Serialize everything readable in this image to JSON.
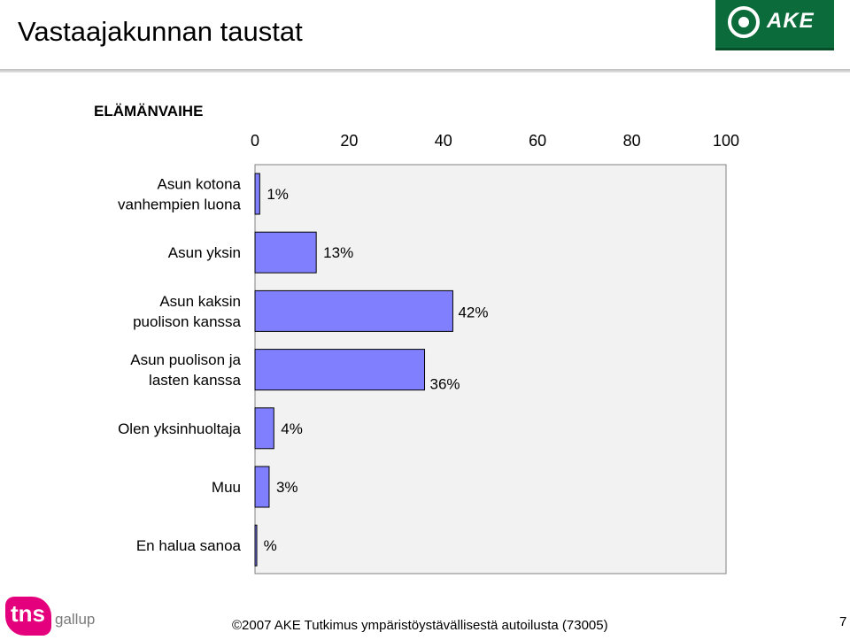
{
  "header": {
    "title": "Vastaajakunnan taustat",
    "logo_text": "AKE",
    "brand_color": "#0b6b3a"
  },
  "chart_data": {
    "type": "bar",
    "orientation": "horizontal",
    "title": "ELÄMÄNVAIHE",
    "categories": [
      [
        "Asun kotona",
        "vanhempien luona"
      ],
      [
        "Asun yksin"
      ],
      [
        "Asun kaksin",
        "puolison kanssa"
      ],
      [
        "Asun puolison ja",
        "lasten kanssa"
      ],
      [
        "Olen yksinhuoltaja"
      ],
      [
        "Muu"
      ],
      [
        "En halua sanoa"
      ]
    ],
    "values": [
      1,
      13,
      42,
      36,
      4,
      3,
      0.3
    ],
    "data_labels": [
      "1%",
      "13%",
      "42%",
      "36%",
      "4%",
      "3%",
      "%"
    ],
    "xlim": [
      0,
      100
    ],
    "xticks": [
      "0",
      "20",
      "40",
      "60",
      "80",
      "100"
    ],
    "xaxis_position": "top",
    "bar_color": "#8080ff",
    "plot_background": "#f2f2f2",
    "grid": false,
    "legend": "none"
  },
  "footer": {
    "tns_logo_text": "tns",
    "gallup_text": "gallup",
    "copyright": "©2007 AKE  Tutkimus ympäristöystävällisestä autoilusta (73005)",
    "page_number": "7"
  }
}
